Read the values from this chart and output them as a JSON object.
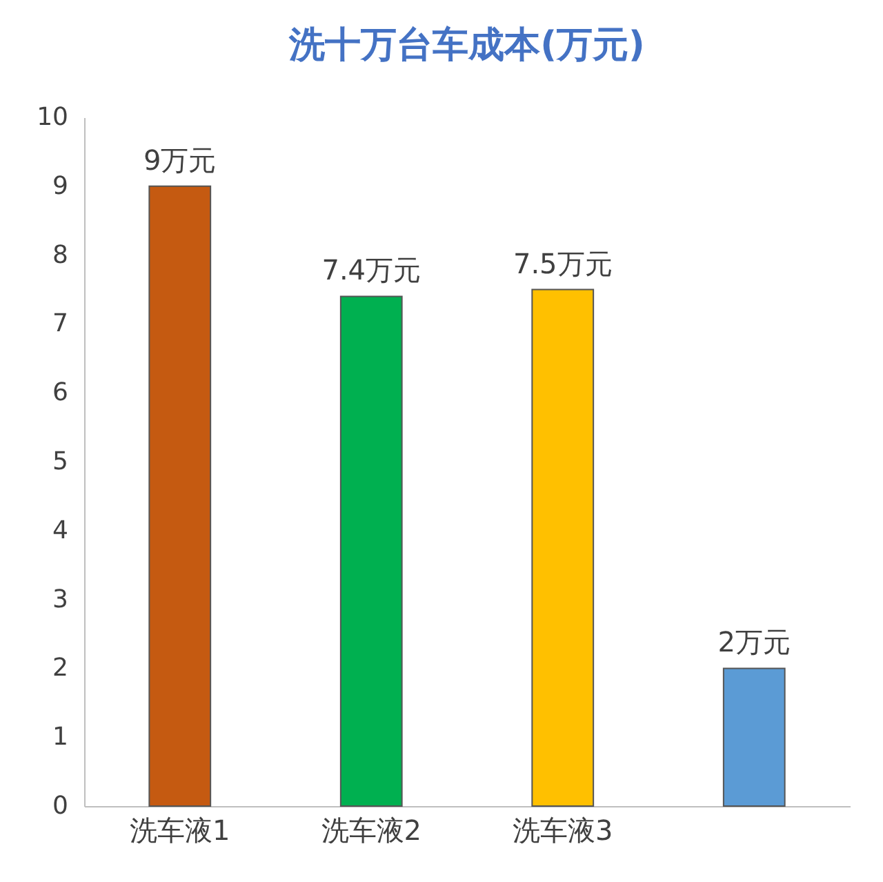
{
  "chart_data": {
    "type": "bar",
    "title": "洗十万台车成本(万元)",
    "categories": [
      "洗车液1",
      "洗车液2",
      "洗车液3",
      null
    ],
    "values": [
      9,
      7.4,
      7.5,
      2
    ],
    "colors": [
      "#c55a11",
      "#00b050",
      "#ffc000",
      "#5b9bd5"
    ],
    "value_labels": [
      "9万元",
      "7.4万元",
      "7.5万元",
      "2万元"
    ],
    "ylim": [
      0,
      10
    ],
    "yticks": [
      0,
      1,
      2,
      3,
      4,
      5,
      6,
      7,
      8,
      9,
      10
    ],
    "grid": false
  }
}
